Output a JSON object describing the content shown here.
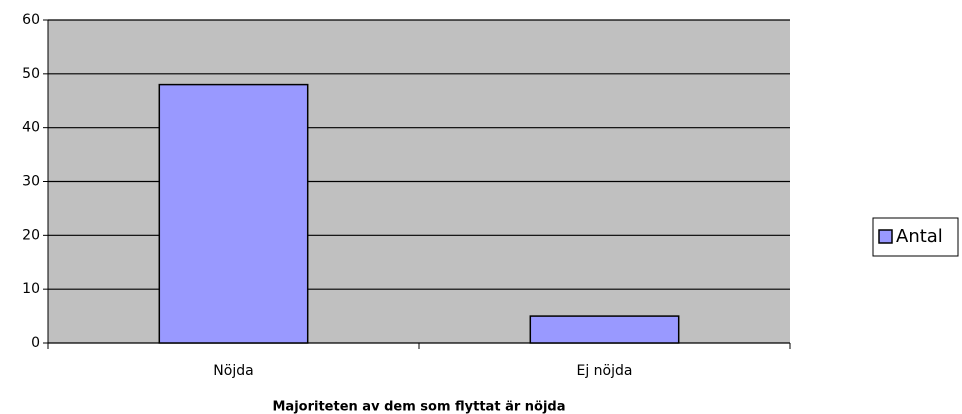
{
  "chart_data": {
    "type": "bar",
    "xlabel": "Majoriteten av dem som flyttat är nöjda",
    "categories": [
      "Nöjda",
      "Ej nöjda"
    ],
    "series": [
      {
        "name": "Antal",
        "color": "#9999ff",
        "values": [
          48,
          5
        ]
      }
    ],
    "ylim": [
      0,
      60
    ],
    "yticks": [
      0,
      10,
      20,
      30,
      40,
      50,
      60
    ],
    "grid": true,
    "legend": "right"
  }
}
